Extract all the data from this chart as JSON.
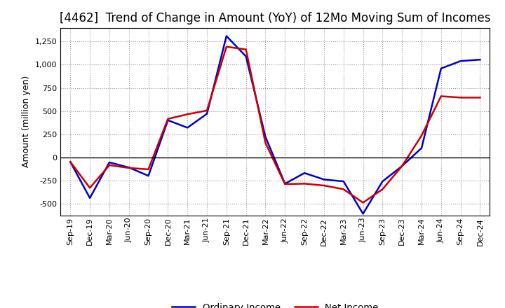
{
  "title": "[4462]  Trend of Change in Amount (YoY) of 12Mo Moving Sum of Incomes",
  "ylabel": "Amount (million yen)",
  "x_labels": [
    "Sep-19",
    "Dec-19",
    "Mar-20",
    "Jun-20",
    "Sep-20",
    "Dec-20",
    "Mar-21",
    "Jun-21",
    "Sep-21",
    "Dec-21",
    "Mar-22",
    "Jun-22",
    "Sep-22",
    "Dec-22",
    "Mar-23",
    "Jun-23",
    "Sep-23",
    "Dec-23",
    "Mar-24",
    "Jun-24",
    "Sep-24",
    "Dec-24"
  ],
  "ordinary_income": [
    -50,
    -440,
    -55,
    -110,
    -200,
    400,
    320,
    470,
    1310,
    1090,
    220,
    -285,
    -170,
    -240,
    -260,
    -610,
    -260,
    -95,
    100,
    960,
    1040,
    1055
  ],
  "net_income": [
    -50,
    -330,
    -85,
    -115,
    -130,
    415,
    465,
    505,
    1195,
    1165,
    155,
    -290,
    -285,
    -305,
    -345,
    -490,
    -345,
    -95,
    235,
    660,
    645,
    645
  ],
  "ordinary_income_color": "#0000cc",
  "net_income_color": "#cc0000",
  "ylim": [
    -630,
    1400
  ],
  "yticks": [
    -500,
    -250,
    0,
    250,
    500,
    750,
    1000,
    1250
  ],
  "background_color": "#ffffff",
  "grid_color": "#999999",
  "title_fontsize": 12,
  "axis_fontsize": 9,
  "tick_fontsize": 8,
  "legend_fontsize": 9.5,
  "linewidth": 1.8
}
